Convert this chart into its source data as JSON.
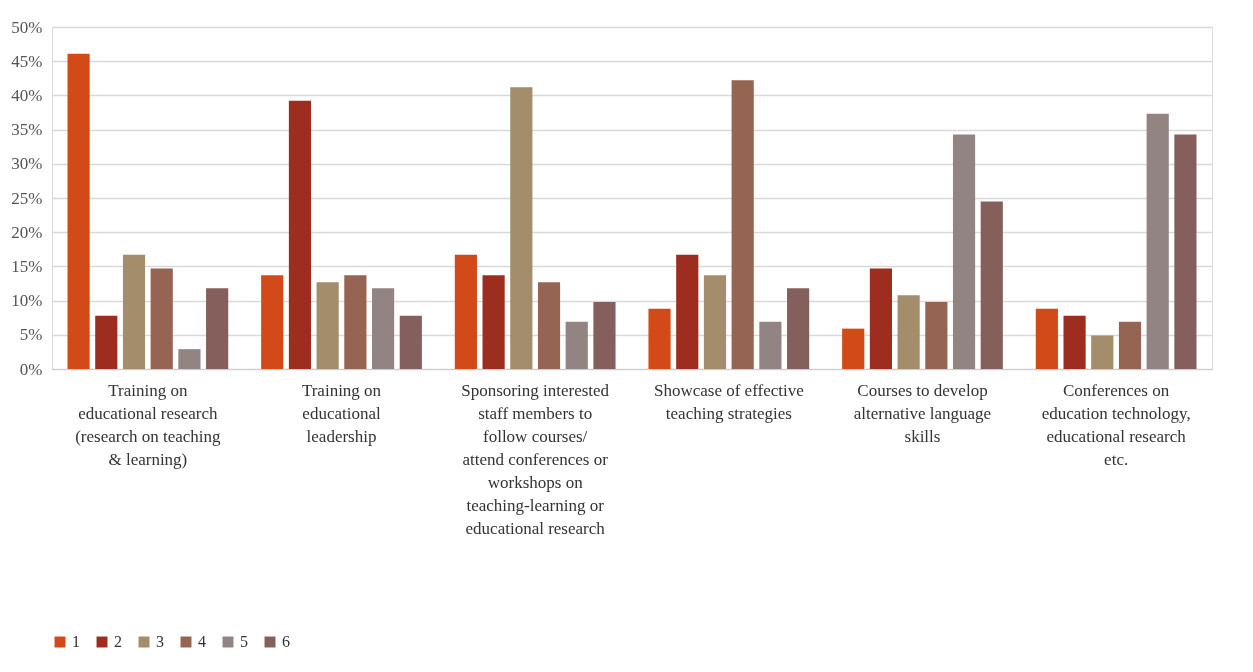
{
  "chart_data": {
    "type": "bar",
    "categories": [
      "Training on educational research (research on teaching & learning)",
      "Training on educational leadership",
      "Sponsoring interested staff members to follow courses/ attend conferences or workshops  on teaching-learning or educational research",
      "Showcase of effective teaching strategies",
      "Courses to develop alternative language skills",
      "Conferences on education technology, educational research etc."
    ],
    "series": [
      {
        "name": "1",
        "color": "#d24a18",
        "values": [
          46.1,
          13.7,
          16.7,
          8.8,
          5.9,
          8.8
        ]
      },
      {
        "name": "2",
        "color": "#9c2d1f",
        "values": [
          7.8,
          39.2,
          13.7,
          16.7,
          14.7,
          7.8
        ]
      },
      {
        "name": "3",
        "color": "#a48d6a",
        "values": [
          16.7,
          12.7,
          41.2,
          13.7,
          10.8,
          4.9
        ]
      },
      {
        "name": "4",
        "color": "#966452",
        "values": [
          14.7,
          13.7,
          12.7,
          42.2,
          9.8,
          6.9
        ]
      },
      {
        "name": "5",
        "color": "#918483",
        "values": [
          2.9,
          11.8,
          6.9,
          6.9,
          34.3,
          37.3
        ]
      },
      {
        "name": "6",
        "color": "#855f5c",
        "values": [
          11.8,
          7.8,
          9.8,
          11.8,
          24.5,
          34.3
        ]
      }
    ],
    "ylim": [
      0,
      50
    ],
    "yticks": [
      {
        "value": 0,
        "label": "0%"
      },
      {
        "value": 5,
        "label": "5%"
      },
      {
        "value": 10,
        "label": "10%"
      },
      {
        "value": 15,
        "label": "15%"
      },
      {
        "value": 20,
        "label": "20%"
      },
      {
        "value": 25,
        "label": "25%"
      },
      {
        "value": 30,
        "label": "30%"
      },
      {
        "value": 35,
        "label": "35%"
      },
      {
        "value": 40,
        "label": "40%"
      },
      {
        "value": 45,
        "label": "45%"
      },
      {
        "value": 50,
        "label": "50%"
      }
    ],
    "grid": "y",
    "legend": "bottom"
  }
}
